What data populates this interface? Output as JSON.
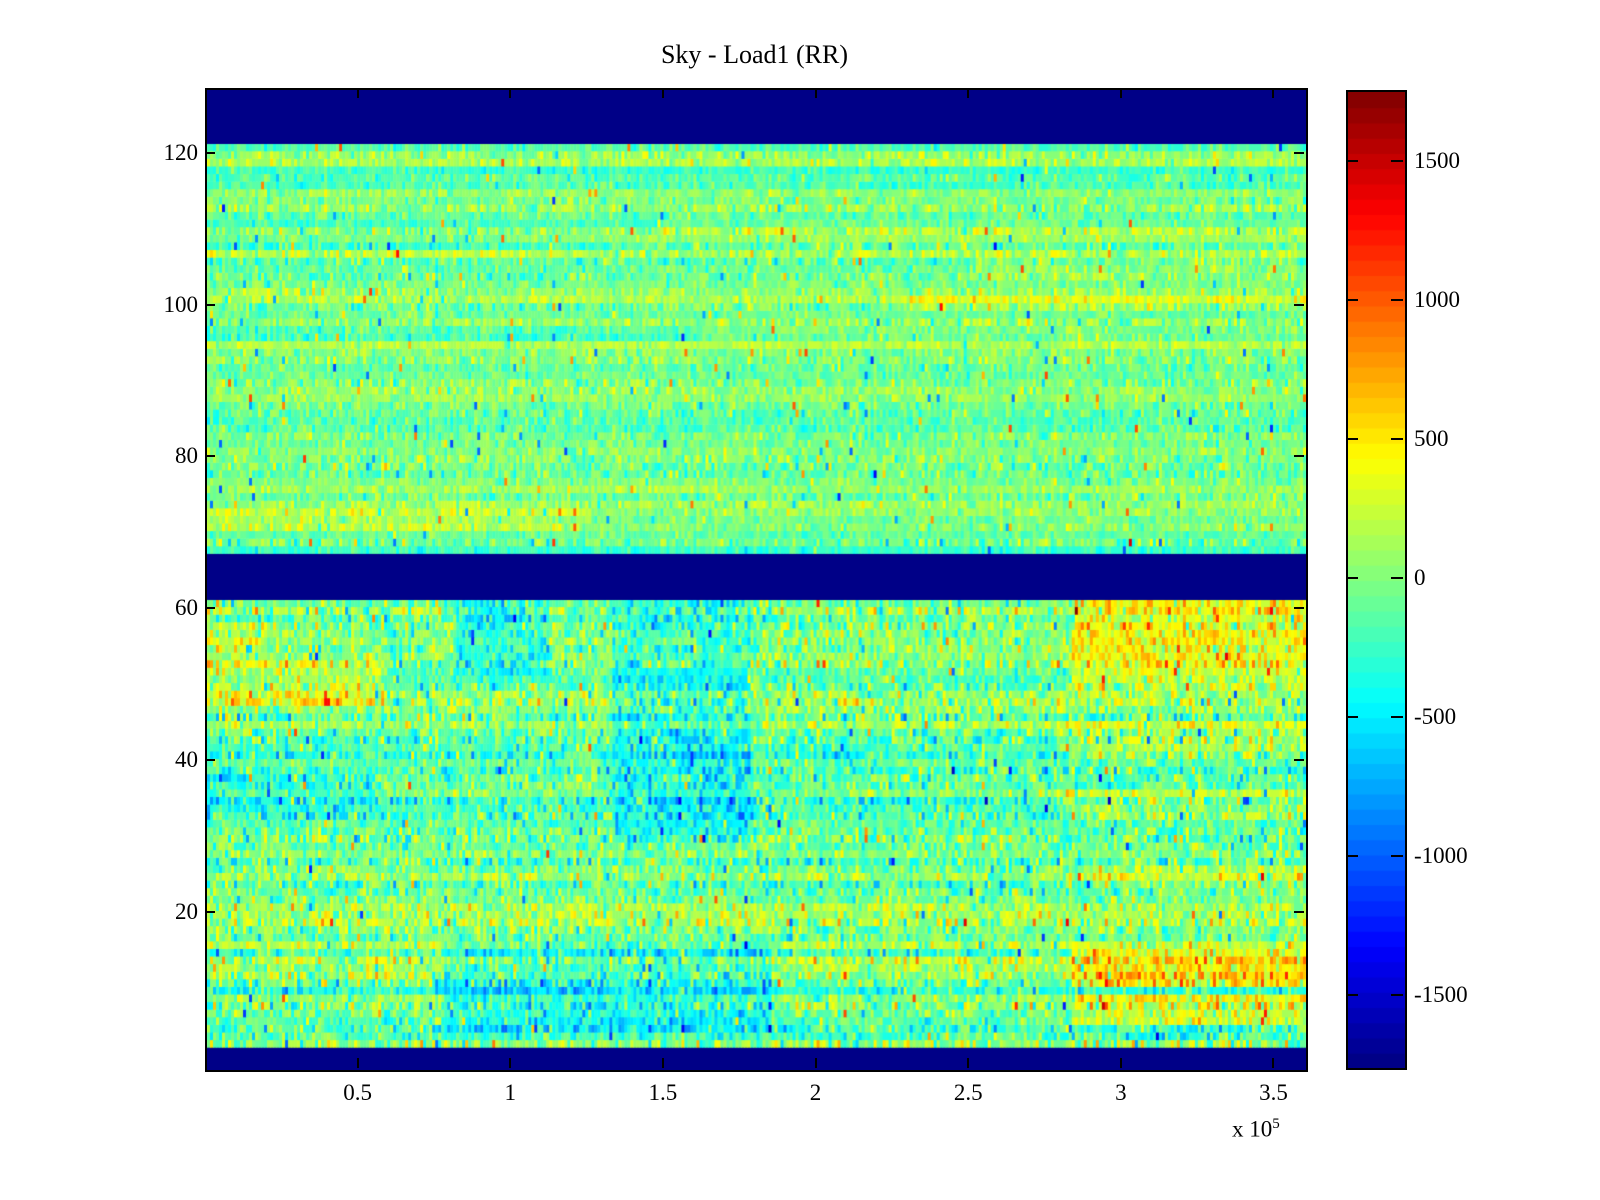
{
  "chart_data": {
    "type": "heatmap",
    "title": "Sky - Load1 (RR)",
    "x_axis": {
      "lim": [
        0,
        360000
      ],
      "ticks": [
        {
          "v": 50000,
          "label": "0.5"
        },
        {
          "v": 100000,
          "label": "1"
        },
        {
          "v": 150000,
          "label": "1.5"
        },
        {
          "v": 200000,
          "label": "2"
        },
        {
          "v": 250000,
          "label": "2.5"
        },
        {
          "v": 300000,
          "label": "3"
        },
        {
          "v": 350000,
          "label": "3.5"
        }
      ],
      "exponent_prefix": "x 10",
      "exponent_power": "5"
    },
    "y_axis": {
      "lim": [
        -0.5,
        128.5
      ],
      "ticks": [
        {
          "v": 20,
          "label": "20"
        },
        {
          "v": 40,
          "label": "40"
        },
        {
          "v": 60,
          "label": "60"
        },
        {
          "v": 80,
          "label": "80"
        },
        {
          "v": 100,
          "label": "100"
        },
        {
          "v": 120,
          "label": "120"
        }
      ]
    },
    "colorbar": {
      "colormap": "jet",
      "levels": 64,
      "lim": [
        -1755,
        1755
      ],
      "ticks": [
        {
          "v": 1500,
          "label": "1500"
        },
        {
          "v": 1000,
          "label": "1000"
        },
        {
          "v": 500,
          "label": "500"
        },
        {
          "v": 0,
          "label": "0"
        },
        {
          "v": -500,
          "label": "-500"
        },
        {
          "v": -1000,
          "label": "-1000"
        },
        {
          "v": -1500,
          "label": "-1500"
        }
      ]
    },
    "grid": {
      "rows": 129,
      "cols": 366
    },
    "masked_row_bands": [
      [
        0,
        2
      ],
      [
        62,
        67
      ],
      [
        122,
        128
      ]
    ],
    "regions": [
      {
        "name": "lower",
        "rows": [
          3,
          61
        ],
        "mean": -50,
        "std": 235,
        "row_bias_std": 130
      },
      {
        "name": "upper",
        "rows": [
          68,
          121
        ],
        "mean": 20,
        "std": 150,
        "row_bias_std": 95
      }
    ],
    "features": [
      {
        "rows": [
          48,
          53
        ],
        "x": [
          0,
          58000
        ],
        "dmean": 300
      },
      {
        "rows": [
          55,
          58
        ],
        "x": [
          0,
          20000
        ],
        "dmean": 220
      },
      {
        "rows": [
          52,
          61
        ],
        "x": [
          82000,
          112000
        ],
        "dmean": -340
      },
      {
        "rows": [
          30,
          61
        ],
        "x": [
          133000,
          178000
        ],
        "dmean": -260
      },
      {
        "rows": [
          5,
          16
        ],
        "x": [
          78000,
          185000
        ],
        "dmean": -300
      },
      {
        "rows": [
          56,
          61
        ],
        "x": [
          283000,
          360000
        ],
        "dmean": 430
      },
      {
        "rows": [
          50,
          55
        ],
        "x": [
          283000,
          360000
        ],
        "dmean": 370
      },
      {
        "rows": [
          41,
          45
        ],
        "x": [
          278000,
          360000
        ],
        "dmean": 300
      },
      {
        "rows": [
          33,
          36
        ],
        "x": [
          278000,
          360000
        ],
        "dmean": 240
      },
      {
        "rows": [
          24,
          26
        ],
        "x": [
          290000,
          360000
        ],
        "dmean": 210
      },
      {
        "rows": [
          11,
          15
        ],
        "x": [
          283000,
          360000
        ],
        "dmean": 540
      },
      {
        "rows": [
          6,
          9
        ],
        "x": [
          283000,
          360000
        ],
        "dmean": 430
      },
      {
        "rows": [
          17,
          19
        ],
        "x": [
          0,
          360000
        ],
        "dmean": 150
      },
      {
        "rows": [
          13,
          14
        ],
        "x": [
          0,
          283000
        ],
        "dmean": 170
      },
      {
        "rows": [
          7,
          8
        ],
        "x": [
          0,
          283000
        ],
        "dmean": 140
      },
      {
        "rows": [
          44,
          45
        ],
        "x": [
          0,
          278000
        ],
        "dmean": 130
      },
      {
        "rows": [
          100,
          101
        ],
        "x": [
          225000,
          360000
        ],
        "dmean": 190
      },
      {
        "rows": [
          104,
          106
        ],
        "x": [
          250000,
          360000
        ],
        "dmean": 140
      },
      {
        "rows": [
          71,
          73
        ],
        "x": [
          0,
          125000
        ],
        "dmean": 170
      },
      {
        "rows": [
          116,
          118
        ],
        "x": [
          0,
          360000
        ],
        "dmean": -150
      },
      {
        "rows": [
          96,
          97
        ],
        "x": [
          0,
          160000
        ],
        "dmean": -140
      },
      {
        "rows": [
          85,
          86
        ],
        "x": [
          0,
          360000
        ],
        "dmean": -130
      },
      {
        "rows": [
          108,
          109
        ],
        "x": [
          0,
          130000
        ],
        "dmean": -130
      },
      {
        "rows": [
          33,
          38
        ],
        "x": [
          0,
          55000
        ],
        "dmean": -180
      },
      {
        "rows": [
          110,
          111
        ],
        "x": [
          150000,
          360000
        ],
        "dmean": 150
      },
      {
        "rows": [
          120,
          121
        ],
        "x": [
          0,
          360000
        ],
        "dmean": -120
      }
    ],
    "noise": {
      "seed": 1337,
      "spike_prob": 0.02,
      "spike_scale": 700
    },
    "colors": {
      "background": "#ffffff",
      "axis": "#000000",
      "masked_navy": "#000087"
    }
  }
}
